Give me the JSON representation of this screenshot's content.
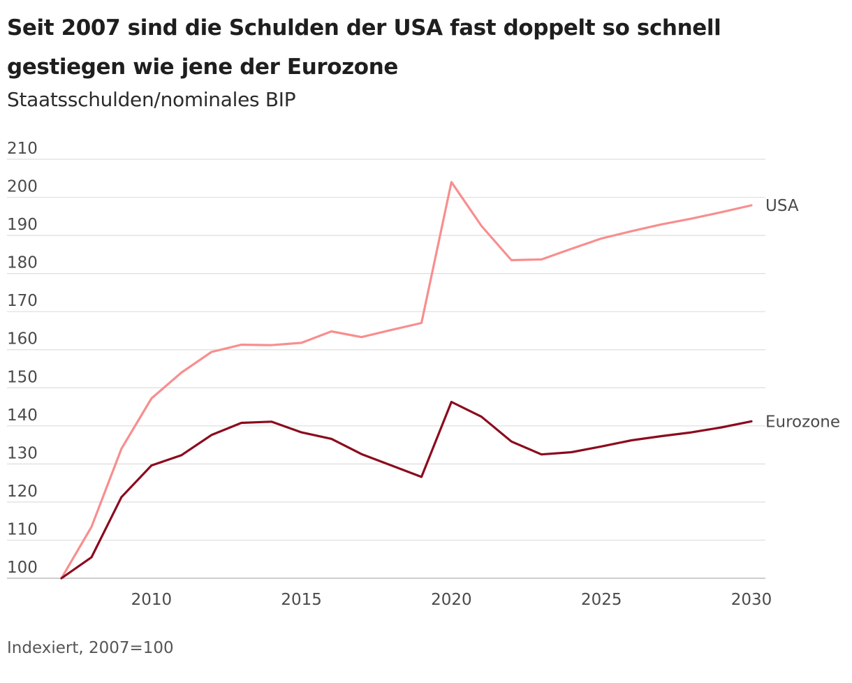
{
  "header": {
    "title": "Seit 2007 sind die Schulden der USA fast doppelt so schnell gestiegen wie jene der Eurozone",
    "subtitle": "Staatsschulden/nominales BIP"
  },
  "footer": {
    "note": "Indexiert, 2007=100"
  },
  "chart_data": {
    "type": "line",
    "title": "Seit 2007 sind die Schulden der USA fast doppelt so schnell gestiegen wie jene der Eurozone",
    "subtitle": "Staatsschulden/nominales BIP",
    "xlabel": "",
    "ylabel": "",
    "xlim": [
      2007,
      2030
    ],
    "ylim": [
      100,
      210
    ],
    "x_ticks": [
      2010,
      2015,
      2020,
      2025,
      2030
    ],
    "y_ticks": [
      100,
      110,
      120,
      130,
      140,
      150,
      160,
      170,
      180,
      190,
      200,
      210
    ],
    "grid": "horizontal",
    "legend": "direct labels at line ends",
    "x": [
      2007,
      2008,
      2009,
      2010,
      2011,
      2012,
      2013,
      2014,
      2015,
      2016,
      2017,
      2018,
      2019,
      2020,
      2021,
      2022,
      2023,
      2024,
      2025,
      2026,
      2027,
      2028,
      2029,
      2030
    ],
    "series": [
      {
        "name": "USA",
        "color": "#f88e8e",
        "values": [
          100,
          113.5,
          134,
          147.2,
          154,
          159.4,
          161.3,
          161.2,
          161.8,
          164.8,
          163.3,
          165.2,
          167,
          204,
          192.5,
          183.5,
          183.7,
          186.5,
          189.2,
          191.1,
          192.9,
          194.4,
          196.1,
          197.9
        ]
      },
      {
        "name": "Eurozone",
        "color": "#8b0a1e",
        "values": [
          100,
          105.5,
          121.3,
          129.6,
          132.3,
          137.6,
          140.8,
          141.1,
          138.3,
          136.6,
          132.6,
          129.6,
          126.6,
          146.3,
          142.4,
          135.9,
          132.5,
          133.1,
          134.6,
          136.2,
          137.3,
          138.3,
          139.6,
          141.2
        ]
      }
    ]
  }
}
